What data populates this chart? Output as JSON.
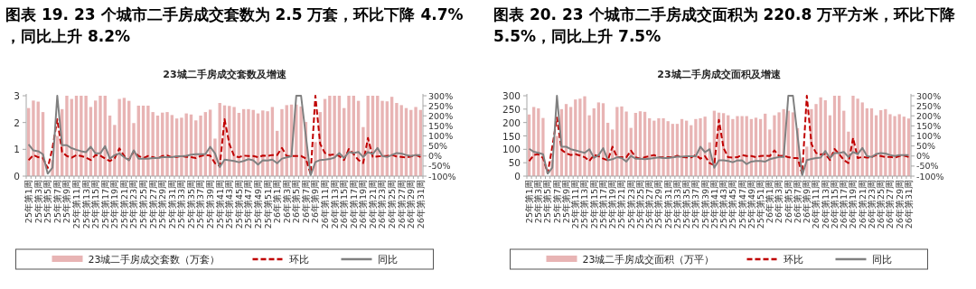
{
  "chart_data": [
    {
      "type": "bar",
      "title": "图表 19. 23 个城市二手房成交套数为 2.5 万套，环比下降 4.7%，同比上升 8.2%",
      "subtitle": "23城二手房成交套数及增速",
      "categories": [
        "25年第1周",
        null,
        "25年第3周",
        null,
        "25年第5周",
        null,
        "25年第7周",
        null,
        "25年第9周",
        null,
        "25年第11周",
        null,
        "25年第13周",
        null,
        "25年第15周",
        null,
        "25年第17周",
        null,
        "25年第19周",
        null,
        "25年第21周",
        null,
        "25年第23周",
        null,
        "25年第25周",
        null,
        "25年第27周",
        null,
        "25年第29周",
        null,
        "25年第31周",
        null,
        "25年第33周",
        null,
        "25年第35周",
        null,
        "25年第37周",
        null,
        "25年第39周",
        null,
        "25年第41周",
        null,
        "25年第43周",
        null,
        "25年第45周",
        null,
        "25年第47周",
        null,
        "25年第49周",
        null,
        "25年第51周",
        null,
        "26年第1周",
        null,
        "26年第3周",
        null,
        "26年第5周",
        null,
        "26年第7周",
        null,
        "26年第9周",
        null,
        "26年第11周",
        null,
        "26年第13周",
        null,
        "26年第15周",
        null,
        "26年第17周",
        null,
        "26年第19周",
        null,
        "26年第21周",
        null,
        "26年第23周",
        null,
        "26年第25周",
        null,
        "26年第27周",
        null,
        "26年第29周",
        null,
        "26年第31周"
      ],
      "series": [
        {
          "name": "23城二手房成交套数（万套）",
          "color": "#e8b4b4",
          "values": [
            2.54,
            2.82,
            2.78,
            2.39,
            null,
            0.6,
            1.5,
            2.5,
            3,
            2.88,
            3,
            3,
            3,
            2.58,
            2.82,
            3,
            3,
            2.26,
            1.91,
            2.88,
            2.92,
            2.81,
            1.98,
            2.63,
            2.63,
            2.63,
            2.39,
            2.26,
            2.37,
            2.39,
            2.28,
            2.15,
            2.18,
            2.34,
            2.3,
            2.08,
            2.26,
            2.39,
            2.48,
            1.4,
            2.73,
            2.64,
            2.62,
            2.58,
            2.36,
            2.5,
            2.5,
            2.47,
            2.34,
            2.45,
            2.42,
            2.58,
            1.69,
            2.5,
            2.65,
            2.67,
            2.67,
            2.6,
            2.02,
            null,
            1.27,
            2.39,
            2.88,
            3,
            3,
            3,
            2.54,
            3,
            3,
            2.81,
            1.83,
            3,
            3,
            3,
            2.81,
            2.79,
            2.96,
            2.73,
            2.65,
            2.54,
            2.47,
            2.58,
            2.47
          ]
        },
        {
          "name": "环比",
          "type": "line",
          "axis": "y2",
          "line_style": "dashed",
          "color": "#c00000",
          "values": [
            -21,
            5,
            -6,
            -10,
            -60,
            40,
            183,
            20,
            0,
            -8,
            5,
            0,
            -8,
            -20,
            5,
            2,
            -12,
            -25,
            -12,
            38,
            0,
            -20,
            24,
            0,
            -10,
            0,
            -6,
            -12,
            0,
            2,
            -6,
            -4,
            0,
            -4,
            -6,
            -10,
            0,
            5,
            2,
            -36,
            -50,
            183,
            60,
            0,
            -6,
            2,
            0,
            0,
            -6,
            2,
            0,
            5,
            5,
            40,
            0,
            0,
            0,
            0,
            -12,
            -90,
            300,
            60,
            15,
            5,
            8,
            0,
            -20,
            35,
            10,
            -20,
            -35,
            90,
            -5,
            -2,
            0,
            0,
            5,
            -2,
            -5,
            -8,
            -2,
            5,
            -5
          ]
        },
        {
          "name": "同比",
          "type": "line",
          "axis": "y2",
          "line_style": "solid",
          "color": "#808080",
          "values": [
            58,
            28,
            24,
            9,
            -88,
            -58,
            300,
            54,
            54,
            39,
            31,
            24,
            19,
            46,
            13,
            13,
            49,
            -13,
            4,
            13,
            -6,
            -21,
            28,
            -13,
            -13,
            -13,
            -10,
            -10,
            -6,
            -6,
            -6,
            -1,
            -1,
            1,
            7,
            9,
            9,
            10,
            46,
            13,
            -55,
            -18,
            -21,
            -25,
            -31,
            -25,
            -16,
            -21,
            -43,
            -21,
            -22,
            -18,
            -36,
            -13,
            -7,
            -1,
            300,
            300,
            100,
            -96,
            -30,
            -20,
            -18,
            -15,
            -8,
            15,
            -10,
            20,
            15,
            20,
            -5,
            20,
            10,
            40,
            0,
            -5,
            5,
            15,
            12,
            5,
            0,
            5,
            5
          ]
        }
      ],
      "ylim": [
        0,
        3
      ],
      "yticks": [
        0,
        1,
        2,
        3
      ],
      "y2lim": [
        -100,
        300
      ],
      "y2ticks": [
        {
          "value": -100,
          "label": "-100%"
        },
        {
          "value": -50,
          "label": "-50%"
        },
        {
          "value": 0,
          "label": "0%"
        },
        {
          "value": 50,
          "label": "50%"
        },
        {
          "value": 100,
          "label": "100%"
        },
        {
          "value": 150,
          "label": "150%"
        },
        {
          "value": 200,
          "label": "200%"
        },
        {
          "value": 250,
          "label": "250%"
        },
        {
          "value": 300,
          "label": "300%"
        }
      ],
      "legend": "bottom"
    },
    {
      "type": "bar",
      "title": "图表 20. 23 个城市二手房成交面积为 220.8 万平方米，环比下降 5.5%，同比上升 7.5%",
      "subtitle": "23城二手房成交面积及增速",
      "categories": [
        "25年第1周",
        null,
        "25年第3周",
        null,
        "25年第5周",
        null,
        "25年第7周",
        null,
        "25年第9周",
        null,
        "25年第11周",
        null,
        "25年第13周",
        null,
        "25年第15周",
        null,
        "25年第17周",
        null,
        "25年第19周",
        null,
        "25年第21周",
        null,
        "25年第23周",
        null,
        "25年第25周",
        null,
        "25年第27周",
        null,
        "25年第29周",
        null,
        "25年第31周",
        null,
        "25年第33周",
        null,
        "25年第35周",
        null,
        "25年第37周",
        null,
        "25年第39周",
        null,
        "25年第41周",
        null,
        "25年第43周",
        null,
        "25年第45周",
        null,
        "25年第47周",
        null,
        "25年第49周",
        null,
        "25年第51周",
        null,
        "26年第1周",
        null,
        "26年第3周",
        null,
        "26年第5周",
        null,
        "26年第7周",
        null,
        "26年第9周",
        null,
        "26年第11周",
        null,
        "26年第13周",
        null,
        "26年第15周",
        null,
        "26年第17周",
        null,
        "26年第19周",
        null,
        "26年第21周",
        null,
        "26年第23周",
        null,
        "26年第25周",
        null,
        "26年第27周",
        null,
        "26年第29周",
        null,
        "26年第31周"
      ],
      "series": [
        {
          "name": "23城二手房成交面积（万平）",
          "color": "#e8b4b4",
          "values": [
            230,
            258,
            253,
            217,
            null,
            60,
            150,
            250,
            269,
            258,
            286,
            289,
            298,
            227,
            253,
            275,
            272,
            199,
            174,
            258,
            260,
            241,
            180,
            236,
            242,
            240,
            216,
            207,
            216,
            216,
            205,
            195,
            195,
            213,
            207,
            190,
            213,
            216,
            222,
            126,
            244,
            237,
            235,
            227,
            213,
            224,
            224,
            224,
            213,
            218,
            213,
            233,
            174,
            227,
            238,
            250,
            244,
            238,
            179,
            null,
            110,
            250,
            269,
            294,
            283,
            227,
            300,
            300,
            244,
            166,
            300,
            289,
            275,
            253,
            253,
            227,
            246,
            250,
            231,
            224,
            231,
            222,
            215
          ]
        },
        {
          "name": "环比",
          "type": "line",
          "axis": "y2",
          "line_style": "dashed",
          "color": "#c00000",
          "values": [
            -25,
            5,
            9,
            -10,
            -85,
            46,
            191,
            31,
            13,
            5,
            9,
            2,
            -6,
            -25,
            5,
            -1,
            -13,
            -21,
            46,
            -6,
            -6,
            -6,
            27,
            -6,
            -13,
            -6,
            -1,
            5,
            -6,
            -7,
            -6,
            -6,
            1,
            -6,
            -7,
            -7,
            5,
            -13,
            -1,
            -35,
            -46,
            180,
            40,
            -6,
            -8,
            -6,
            5,
            0,
            0,
            -6,
            0,
            2,
            0,
            28,
            0,
            2,
            -6,
            -10,
            -10,
            -90,
            300,
            60,
            15,
            8,
            10,
            -20,
            35,
            10,
            -20,
            -35,
            90,
            -10,
            -5,
            -8,
            -5,
            5,
            0,
            -5,
            -5,
            -8,
            0,
            2,
            -5
          ]
        },
        {
          "name": "同比",
          "type": "line",
          "axis": "y2",
          "line_style": "solid",
          "color": "#808080",
          "values": [
            36,
            21,
            16,
            9,
            -88,
            -58,
            300,
            46,
            46,
            34,
            28,
            22,
            16,
            34,
            -9,
            4,
            39,
            -21,
            -16,
            -6,
            -10,
            -28,
            1,
            -13,
            -13,
            -16,
            -13,
            -10,
            -7,
            -10,
            -10,
            -7,
            -3,
            -3,
            -1,
            -1,
            -1,
            46,
            19,
            34,
            -58,
            -21,
            -21,
            -25,
            -31,
            -22,
            -21,
            -40,
            -28,
            -25,
            -25,
            -28,
            -16,
            -10,
            -5,
            -5,
            300,
            300,
            100,
            -96,
            -20,
            -15,
            -10,
            -8,
            25,
            -10,
            15,
            15,
            20,
            -5,
            20,
            10,
            40,
            0,
            -5,
            10,
            15,
            12,
            5,
            0,
            5,
            5,
            5
          ]
        }
      ],
      "ylim": [
        0,
        300
      ],
      "yticks": [
        0,
        50,
        100,
        150,
        200,
        250,
        300
      ],
      "y2lim": [
        -100,
        300
      ],
      "y2ticks": [
        {
          "value": -100,
          "label": "-100%"
        },
        {
          "value": -50,
          "label": "-50%"
        },
        {
          "value": 0,
          "label": "0%"
        },
        {
          "value": 50,
          "label": "50%"
        },
        {
          "value": 100,
          "label": "100%"
        },
        {
          "value": 150,
          "label": "150%"
        },
        {
          "value": 200,
          "label": "200%"
        },
        {
          "value": 250,
          "label": "250%"
        },
        {
          "value": 300,
          "label": "300%"
        }
      ],
      "legend": "bottom"
    }
  ]
}
